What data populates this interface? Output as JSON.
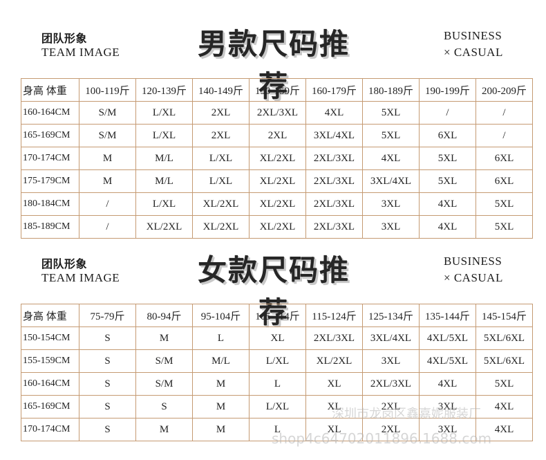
{
  "sections": [
    {
      "team_cn": "团队形象",
      "team_en": "TEAM IMAGE",
      "title": "男款尺码推荐",
      "business": "BUSINESS",
      "casual": "× CASUAL",
      "table": {
        "header": [
          "身高 体重",
          "100-119斤",
          "120-139斤",
          "140-149斤",
          "150-159斤",
          "160-179斤",
          "180-189斤",
          "190-199斤",
          "200-209斤"
        ],
        "rows": [
          [
            "160-164CM",
            "S/M",
            "L/XL",
            "2XL",
            "2XL/3XL",
            "4XL",
            "5XL",
            "/",
            "/"
          ],
          [
            "165-169CM",
            "S/M",
            "L/XL",
            "2XL",
            "2XL",
            "3XL/4XL",
            "5XL",
            "6XL",
            "/"
          ],
          [
            "170-174CM",
            "M",
            "M/L",
            "L/XL",
            "XL/2XL",
            "2XL/3XL",
            "4XL",
            "5XL",
            "6XL"
          ],
          [
            "175-179CM",
            "M",
            "M/L",
            "L/XL",
            "XL/2XL",
            "2XL/3XL",
            "3XL/4XL",
            "5XL",
            "6XL"
          ],
          [
            "180-184CM",
            "/",
            "L/XL",
            "XL/2XL",
            "XL/2XL",
            "2XL/3XL",
            "3XL",
            "4XL",
            "5XL"
          ],
          [
            "185-189CM",
            "/",
            "XL/2XL",
            "XL/2XL",
            "XL/2XL",
            "2XL/3XL",
            "3XL",
            "4XL",
            "5XL"
          ]
        ]
      }
    },
    {
      "team_cn": "团队形象",
      "team_en": "TEAM IMAGE",
      "title": "女款尺码推荐",
      "business": "BUSINESS",
      "casual": "× CASUAL",
      "table": {
        "header": [
          "身高 体重",
          "75-79斤",
          "80-94斤",
          "95-104斤",
          "105-114斤",
          "115-124斤",
          "125-134斤",
          "135-144斤",
          "145-154斤"
        ],
        "rows": [
          [
            "150-154CM",
            "S",
            "M",
            "L",
            "XL",
            "2XL/3XL",
            "3XL/4XL",
            "4XL/5XL",
            "5XL/6XL"
          ],
          [
            "155-159CM",
            "S",
            "S/M",
            "M/L",
            "L/XL",
            "XL/2XL",
            "3XL",
            "4XL/5XL",
            "5XL/6XL"
          ],
          [
            "160-164CM",
            "S",
            "S/M",
            "M",
            "L",
            "XL",
            "2XL/3XL",
            "4XL",
            "5XL"
          ],
          [
            "165-169CM",
            "S",
            "S",
            "M",
            "L/XL",
            "XL",
            "2XL",
            "3XL",
            "4XL"
          ],
          [
            "170-174CM",
            "S",
            "M",
            "M",
            "L",
            "XL",
            "2XL",
            "3XL",
            "4XL"
          ]
        ]
      }
    }
  ],
  "watermark": {
    "line1": "深圳市龙岗区鑫嘉妮服装厂",
    "line2": "shop4c64702011896.1688.com"
  }
}
